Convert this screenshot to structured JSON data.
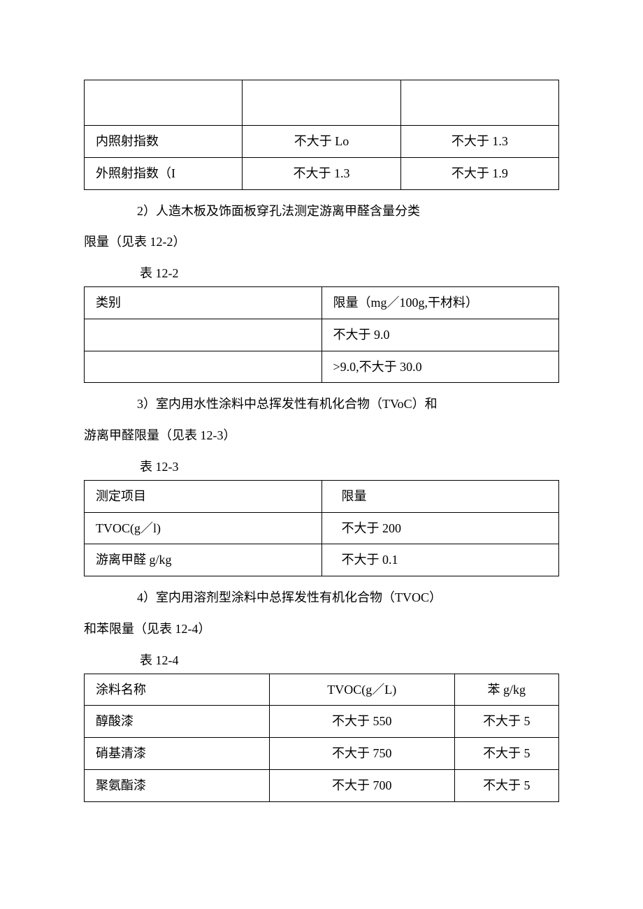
{
  "table1": {
    "rows": [
      [
        "",
        "",
        ""
      ],
      [
        "内照射指数",
        "不大于 Lo",
        "不大于 1.3"
      ],
      [
        "外照射指数（I",
        "不大于 1.3",
        "不大于 1.9"
      ]
    ]
  },
  "section2": {
    "line1": "2）人造木板及饰面板穿孔法测定游离甲醛含量分类",
    "line2": "限量（见表 12-2）",
    "label": "表 12-2"
  },
  "table2": {
    "rows": [
      [
        "类别",
        "限量（mg／100g,干材料）"
      ],
      [
        "",
        "不大于 9.0"
      ],
      [
        "",
        ">9.0,不大于 30.0"
      ]
    ]
  },
  "section3": {
    "line1": "3）室内用水性涂料中总挥发性有机化合物（TVoC）和",
    "line2": "游离甲醛限量（见表 12-3）",
    "label": "表 12-3"
  },
  "table3": {
    "rows": [
      [
        "测定项目",
        "限量"
      ],
      [
        "TVOC(g／l)",
        "不大于 200"
      ],
      [
        "游离甲醛 g/kg",
        "不大于 0.1"
      ]
    ]
  },
  "section4": {
    "line1": "4）室内用溶剂型涂料中总挥发性有机化合物（TVOC）",
    "line2": "和苯限量（见表 12-4）",
    "label": "表 12-4"
  },
  "table4": {
    "rows": [
      [
        "涂料名称",
        "TVOC(g／L)",
        "苯 g/kg"
      ],
      [
        "醇酸漆",
        "不大于 550",
        "不大于 5"
      ],
      [
        "硝基清漆",
        "不大于 750",
        "不大于 5"
      ],
      [
        "聚氨酯漆",
        "不大于 700",
        "不大于 5"
      ]
    ]
  }
}
